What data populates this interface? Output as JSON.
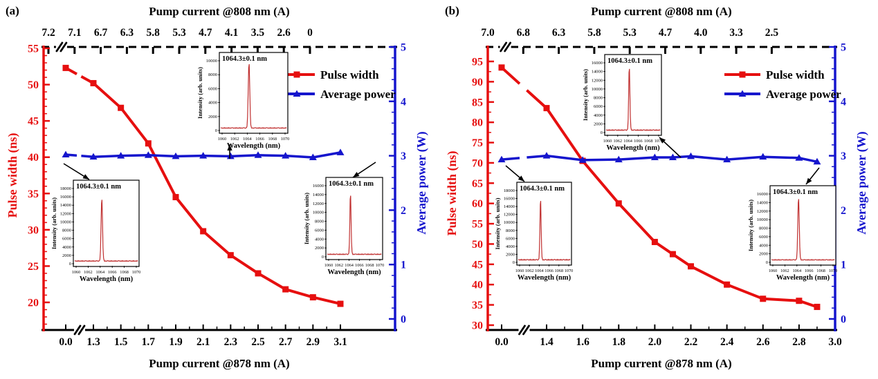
{
  "colors": {
    "pulse_width": "#e60f0f",
    "average_power": "#1515cd",
    "inset_curve": "#c03030",
    "axis_black": "#000000"
  },
  "chart_data": [
    {
      "type": "line",
      "panel_label": "(a)",
      "axes": {
        "top": {
          "title": "Pump current @808 nm (A)",
          "tick_labels": [
            "7.2",
            "7.1",
            "6.7",
            "6.3",
            "5.8",
            "5.3",
            "4.7",
            "4.1",
            "3.5",
            "2.6",
            "0"
          ],
          "style": "dashed",
          "axis_break": true
        },
        "bottom": {
          "title": "Pump current @878 nm (A)",
          "tick_labels": [
            "0.0",
            "1.3",
            "1.5",
            "1.7",
            "1.9",
            "2.1",
            "2.3",
            "2.5",
            "2.7",
            "2.9",
            "3.1"
          ],
          "axis_break": true
        },
        "left": {
          "title": "Pulse width (ns)",
          "tick_labels": [
            "55",
            "50",
            "45",
            "40",
            "35",
            "30",
            "25",
            "20"
          ]
        },
        "right": {
          "title": "Average power (W)",
          "tick_labels": [
            "5",
            "4",
            "3",
            "2",
            "1",
            "0"
          ]
        }
      },
      "series": [
        {
          "name": "Pulse width",
          "axis": "left",
          "marker": "square",
          "x": [
            0.0,
            1.3,
            1.5,
            1.7,
            1.9,
            2.1,
            2.3,
            2.5,
            2.7,
            2.9,
            3.1
          ],
          "y": [
            52.3,
            50.2,
            46.8,
            41.9,
            34.5,
            29.8,
            26.5,
            24.0,
            21.8,
            20.7,
            19.8
          ]
        },
        {
          "name": "Average power",
          "axis": "right",
          "marker": "triangle",
          "x": [
            0.0,
            1.3,
            1.5,
            1.7,
            1.9,
            2.1,
            2.3,
            2.5,
            2.7,
            2.9,
            3.1
          ],
          "y": [
            3.02,
            2.98,
            3.0,
            3.01,
            2.99,
            3.0,
            2.99,
            3.01,
            3.0,
            2.97,
            3.06
          ]
        }
      ],
      "insets": [
        {
          "annotation": "1064.3±0.1 nm",
          "ylabel": "Intensity (arb. units)",
          "xlabel": "Wavelength (nm)",
          "x_tick_labels": [
            "1060",
            "1062",
            "1064",
            "1066",
            "1068",
            "1070"
          ],
          "y_max": 10000,
          "y_step": 2000,
          "peak_wavelength": 1064.3,
          "peak_intensity": 9900
        },
        {
          "annotation": "1064.3±0.1 nm",
          "ylabel": "Intensity (arb. units)",
          "xlabel": "Wavelength (nm)",
          "x_tick_labels": [
            "1060",
            "1062",
            "1064",
            "1066",
            "1068",
            "1070"
          ],
          "y_max": 18000,
          "y_step": 2000,
          "peak_wavelength": 1064.3,
          "peak_intensity": 15900
        },
        {
          "annotation": "1064.3±0.1 nm",
          "ylabel": "Intensity (arb. units)",
          "xlabel": "Wavelength (nm)",
          "x_tick_labels": [
            "1060",
            "1062",
            "1064",
            "1066",
            "1068",
            "1070"
          ],
          "y_max": 16000,
          "y_step": 2000,
          "peak_wavelength": 1064.3,
          "peak_intensity": 14300
        }
      ]
    },
    {
      "type": "line",
      "panel_label": "(b)",
      "axes": {
        "top": {
          "title": "Pump current @808 nm (A)",
          "tick_labels": [
            "7.0",
            "6.8",
            "6.3",
            "5.8",
            "5.3",
            "4.7",
            "4.0",
            "3.3",
            "2.5"
          ],
          "style": "dashed",
          "axis_break": true
        },
        "bottom": {
          "title": "Pump current @878 nm (A)",
          "tick_labels": [
            "0.0",
            "1.4",
            "1.6",
            "1.8",
            "2.0",
            "2.2",
            "2.4",
            "2.6",
            "2.8",
            "3.0"
          ],
          "axis_break": true
        },
        "left": {
          "title": "Pulse width (ns)",
          "tick_labels": [
            "95",
            "90",
            "85",
            "80",
            "75",
            "70",
            "65",
            "60",
            "55",
            "50",
            "45",
            "40",
            "35",
            "30"
          ]
        },
        "right": {
          "title": "Average power (W)",
          "tick_labels": [
            "5",
            "4",
            "3",
            "2",
            "1",
            "0"
          ]
        }
      },
      "series": [
        {
          "name": "Pulse width",
          "axis": "left",
          "marker": "square",
          "x": [
            0.0,
            1.4,
            1.6,
            1.8,
            2.0,
            2.1,
            2.2,
            2.4,
            2.6,
            2.8,
            2.9
          ],
          "y": [
            93.5,
            83.5,
            70.5,
            60.0,
            50.5,
            47.5,
            44.5,
            40.0,
            36.5,
            36.0,
            34.5
          ]
        },
        {
          "name": "Average power",
          "axis": "right",
          "marker": "triangle",
          "x": [
            0.0,
            1.4,
            1.6,
            1.8,
            2.0,
            2.1,
            2.2,
            2.4,
            2.6,
            2.8,
            2.9
          ],
          "y": [
            2.93,
            3.0,
            2.92,
            2.93,
            2.97,
            2.97,
            2.99,
            2.93,
            2.98,
            2.96,
            2.89
          ]
        }
      ],
      "insets": [
        {
          "annotation": "1064.3±0.1 nm",
          "ylabel": "Intensity (arb. units)",
          "xlabel": "Wavelength (nm)",
          "x_tick_labels": [
            "1060",
            "1062",
            "1064",
            "1066",
            "1068",
            "1070"
          ],
          "y_max": 16000,
          "y_step": 2000,
          "peak_wavelength": 1064.3,
          "peak_intensity": 15200
        },
        {
          "annotation": "1064.3±0.1 nm",
          "ylabel": "Intensity (arb. units)",
          "xlabel": "Wavelength (nm)",
          "x_tick_labels": [
            "1060",
            "1062",
            "1064",
            "1066",
            "1068",
            "1070"
          ],
          "y_max": 18000,
          "y_step": 2000,
          "peak_wavelength": 1064.3,
          "peak_intensity": 16000
        },
        {
          "annotation": "1064.3±0.1 nm",
          "ylabel": "Intensity (arb. units)",
          "xlabel": "Wavelength (nm)",
          "x_tick_labels": [
            "1060",
            "1062",
            "1064",
            "1066",
            "1068",
            "1070"
          ],
          "y_max": 16000,
          "y_step": 2000,
          "peak_wavelength": 1064.3,
          "peak_intensity": 15400
        }
      ]
    }
  ]
}
